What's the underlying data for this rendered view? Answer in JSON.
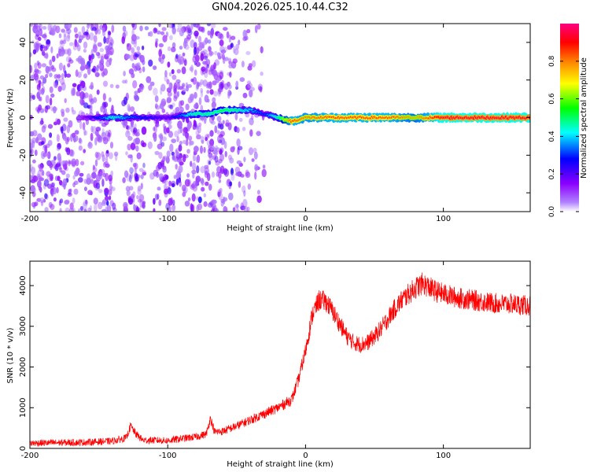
{
  "title": "GN04.2026.025.10.44.C32",
  "chart_data": [
    {
      "type": "heatmap",
      "name": "spectrogram",
      "xlabel": "Height of straight line (km)",
      "ylabel": "Frequency (Hz)",
      "xlim": [
        -200,
        163
      ],
      "ylim": [
        -50,
        50
      ],
      "xticks": [
        -200,
        -100,
        0,
        100
      ],
      "yticks": [
        -40,
        -20,
        0,
        20,
        40
      ],
      "colorbar": {
        "label": "Normalized spectral amplitude",
        "range": [
          0,
          1
        ],
        "ticks": [
          "0.0",
          "0.2",
          "0.4",
          "0.6",
          "0.8"
        ],
        "colors": [
          "#ffffff",
          "#8a00ff",
          "#0000ff",
          "#00ffff",
          "#00ff00",
          "#ffff00",
          "#ff8000",
          "#ff0000",
          "#ff0080"
        ]
      },
      "ridge": {
        "description": "dominant frequency vs height",
        "x": [
          -165,
          -150,
          -140,
          -120,
          -100,
          -90,
          -80,
          -70,
          -60,
          -50,
          -40,
          -30,
          -20,
          -10,
          0,
          20,
          60,
          80,
          100,
          163
        ],
        "y": [
          0,
          0,
          0,
          0,
          0,
          1,
          2,
          2,
          4,
          4,
          4,
          2,
          0,
          -2,
          0,
          0,
          0,
          0,
          0,
          0
        ],
        "amplitude": [
          0.1,
          0.3,
          0.45,
          0.3,
          0.2,
          0.35,
          0.5,
          0.5,
          0.55,
          0.5,
          0.4,
          0.3,
          0.5,
          0.85,
          0.8,
          0.85,
          0.85,
          0.75,
          0.95,
          0.95
        ]
      },
      "noise_region": {
        "x": [
          -200,
          -30
        ],
        "ylim": [
          -50,
          50
        ],
        "amplitude": 0.1
      }
    },
    {
      "type": "line",
      "name": "snr",
      "xlabel": "Height of straight line (km)",
      "ylabel": "SNR (10 * v/v)",
      "xlim": [
        -200,
        163
      ],
      "ylim": [
        0,
        4600
      ],
      "xticks": [
        -200,
        -100,
        0,
        100
      ],
      "yticks": [
        0,
        1000,
        2000,
        3000,
        4000
      ],
      "color": "#ff0000",
      "series": [
        {
          "name": "SNR",
          "x": [
            -200,
            -180,
            -160,
            -140,
            -130,
            -127,
            -123,
            -118,
            -110,
            -100,
            -90,
            -80,
            -72,
            -69,
            -66,
            -60,
            -50,
            -40,
            -30,
            -20,
            -10,
            -5,
            0,
            5,
            10,
            15,
            20,
            25,
            30,
            35,
            40,
            45,
            50,
            55,
            60,
            65,
            70,
            75,
            80,
            85,
            90,
            95,
            100,
            110,
            120,
            130,
            140,
            150,
            163
          ],
          "y": [
            130,
            140,
            150,
            180,
            260,
            550,
            350,
            200,
            200,
            190,
            240,
            280,
            350,
            750,
            400,
            420,
            550,
            700,
            850,
            1000,
            1200,
            1700,
            2400,
            3300,
            3650,
            3600,
            3350,
            3050,
            2750,
            2600,
            2550,
            2600,
            2750,
            2950,
            3200,
            3450,
            3650,
            3800,
            3950,
            4050,
            3950,
            3850,
            3800,
            3700,
            3650,
            3600,
            3550,
            3550,
            3500
          ],
          "noise_amplitude": 130
        }
      ]
    }
  ]
}
